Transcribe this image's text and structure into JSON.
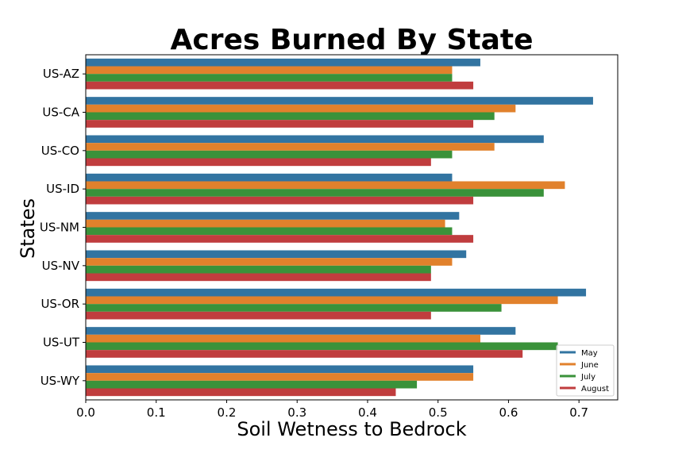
{
  "chart_data": {
    "type": "bar",
    "orientation": "horizontal",
    "title": "Acres Burned By State",
    "xlabel": "Soil Wetness to Bedrock",
    "ylabel": "States",
    "xlim": [
      0,
      0.755
    ],
    "xticks": [
      "0.0",
      "0.1",
      "0.2",
      "0.3",
      "0.4",
      "0.5",
      "0.6",
      "0.7"
    ],
    "categories": [
      "US-AZ",
      "US-CA",
      "US-CO",
      "US-ID",
      "US-NM",
      "US-NV",
      "US-OR",
      "US-UT",
      "US-WY"
    ],
    "series": [
      {
        "name": "May",
        "color": "#3274a1",
        "values": [
          0.56,
          0.72,
          0.65,
          0.52,
          0.53,
          0.54,
          0.71,
          0.61,
          0.55
        ]
      },
      {
        "name": "June",
        "color": "#e1812c",
        "values": [
          0.52,
          0.61,
          0.58,
          0.68,
          0.51,
          0.52,
          0.67,
          0.56,
          0.55
        ]
      },
      {
        "name": "July",
        "color": "#3a923a",
        "values": [
          0.52,
          0.58,
          0.52,
          0.65,
          0.52,
          0.49,
          0.59,
          0.67,
          0.47
        ]
      },
      {
        "name": "August",
        "color": "#c03d3e",
        "values": [
          0.55,
          0.55,
          0.49,
          0.55,
          0.55,
          0.49,
          0.49,
          0.62,
          0.44
        ]
      }
    ],
    "grid": false,
    "legend": "bottom-right"
  }
}
